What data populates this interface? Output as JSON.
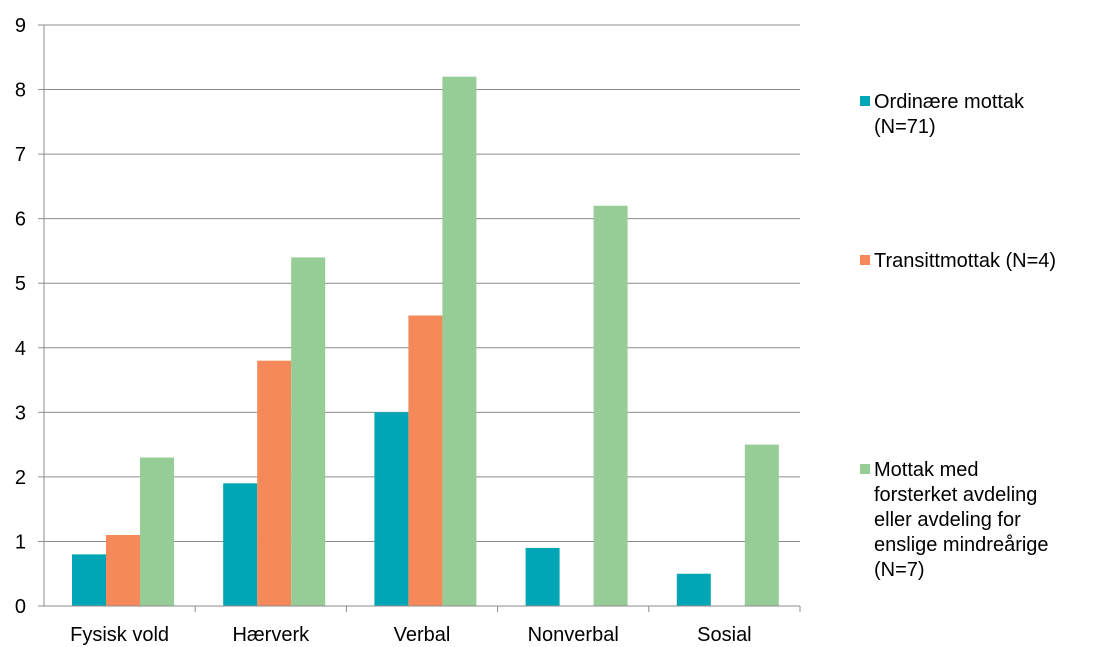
{
  "chart_data": {
    "type": "bar",
    "categories": [
      "Fysisk vold",
      "Hærverk",
      "Verbal",
      "Nonverbal",
      "Sosial"
    ],
    "series": [
      {
        "name": "Ordinære mottak (N=71)",
        "color": "#00A6B5",
        "values": [
          0.8,
          1.9,
          3.0,
          0.9,
          0.5
        ]
      },
      {
        "name": "Transittmottak (N=4)",
        "color": "#F5895A",
        "values": [
          1.1,
          3.8,
          4.5,
          0,
          0
        ]
      },
      {
        "name": "Mottak med forsterket avdeling eller avdeling for enslige mindreårige (N=7)",
        "color": "#96CC96",
        "values": [
          2.3,
          5.4,
          8.2,
          6.2,
          2.5
        ]
      }
    ],
    "ylim": [
      0,
      9
    ],
    "yticks": [
      "0",
      "1",
      "2",
      "3",
      "4",
      "5",
      "6",
      "7",
      "8",
      "9"
    ],
    "grid": true,
    "legend_position": "right",
    "title": "",
    "xlabel": "",
    "ylabel": ""
  },
  "legend": [
    {
      "text": "Ordinære mottak\n(N=71)"
    },
    {
      "text": "Transittmottak (N=4)"
    },
    {
      "text": "Mottak med\nforsterket avdeling\neller avdeling for\nenslige mindreårige\n(N=7)"
    }
  ]
}
